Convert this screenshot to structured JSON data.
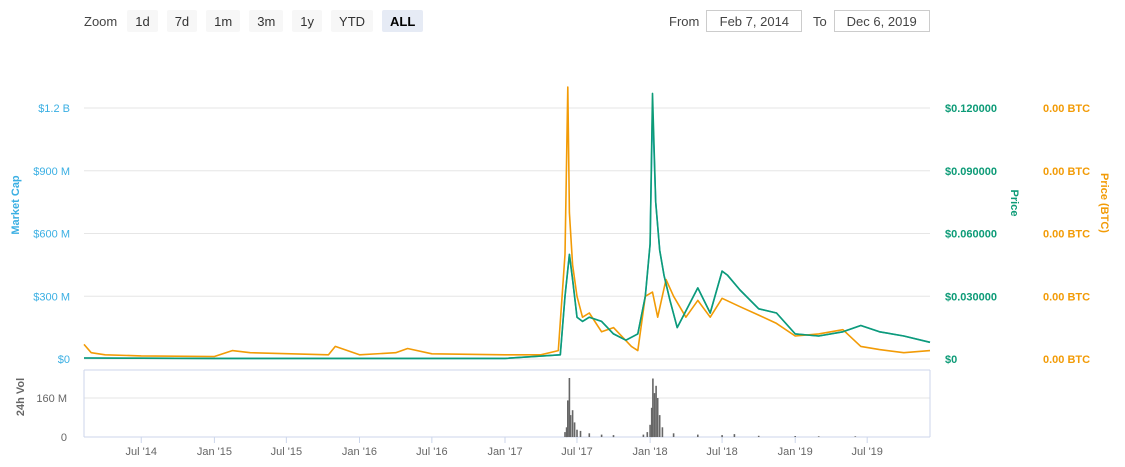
{
  "zoom": {
    "label": "Zoom",
    "buttons": [
      {
        "label": "1d",
        "active": false
      },
      {
        "label": "7d",
        "active": false
      },
      {
        "label": "1m",
        "active": false
      },
      {
        "label": "3m",
        "active": false
      },
      {
        "label": "1y",
        "active": false
      },
      {
        "label": "YTD",
        "active": false
      },
      {
        "label": "ALL",
        "active": true
      }
    ]
  },
  "range": {
    "from_label": "From",
    "from_value": "Feb 7, 2014",
    "to_label": "To",
    "to_value": "Dec 6, 2019"
  },
  "colors": {
    "market_cap": "#3aafe3",
    "price": "#0d9b77",
    "price_btc": "#f29b06",
    "volume": "#666666",
    "grid": "#e6e6e6"
  },
  "chart_data": {
    "type": "line",
    "x_range": [
      "2014-02-07",
      "2019-12-06"
    ],
    "x_ticks": [
      "Jul '14",
      "Jan '15",
      "Jul '15",
      "Jan '16",
      "Jul '16",
      "Jan '17",
      "Jul '17",
      "Jan '18",
      "Jul '18",
      "Jan '19",
      "Jul '19"
    ],
    "y_axes": {
      "market_cap": {
        "label": "Market Cap",
        "ticks": [
          "$0",
          "$300 M",
          "$600 M",
          "$900 M",
          "$1.2 B"
        ],
        "range": [
          0,
          1200000000
        ]
      },
      "price": {
        "label": "Price",
        "ticks": [
          "$0",
          "$0.030000",
          "$0.060000",
          "$0.090000",
          "$0.120000"
        ],
        "range": [
          0,
          0.12
        ]
      },
      "price_btc": {
        "label": "Price (BTC)",
        "ticks": [
          "0.00 BTC",
          "0.00 BTC",
          "0.00 BTC",
          "0.00 BTC",
          "0.00 BTC"
        ]
      },
      "volume": {
        "label": "24h Vol",
        "ticks": [
          "0",
          "160 M"
        ],
        "range": [
          0,
          160000000
        ]
      }
    },
    "series": [
      {
        "name": "Market Cap",
        "axis": "market_cap",
        "x": [
          "2014-02-07",
          "2014-07-01",
          "2015-01-01",
          "2016-01-01",
          "2017-01-01",
          "2017-05-20",
          "2017-06-01",
          "2017-06-12",
          "2017-06-20",
          "2017-07-01",
          "2017-07-15",
          "2017-08-01",
          "2017-09-01",
          "2017-10-01",
          "2017-11-01",
          "2017-12-01",
          "2017-12-20",
          "2018-01-01",
          "2018-01-07",
          "2018-01-15",
          "2018-01-25",
          "2018-02-05",
          "2018-02-20",
          "2018-03-10",
          "2018-04-01",
          "2018-05-01",
          "2018-06-01",
          "2018-07-01",
          "2018-07-15",
          "2018-08-15",
          "2018-10-01",
          "2018-11-15",
          "2019-01-01",
          "2019-03-01",
          "2019-05-01",
          "2019-06-15",
          "2019-08-01",
          "2019-10-01",
          "2019-12-06"
        ],
        "y": [
          5000000,
          4000000,
          3000000,
          3000000,
          3000000,
          20000000,
          300000000,
          500000000,
          380000000,
          200000000,
          180000000,
          200000000,
          180000000,
          120000000,
          90000000,
          120000000,
          300000000,
          550000000,
          1200000000,
          750000000,
          520000000,
          400000000,
          280000000,
          150000000,
          230000000,
          340000000,
          220000000,
          420000000,
          400000000,
          330000000,
          240000000,
          220000000,
          120000000,
          110000000,
          130000000,
          160000000,
          130000000,
          110000000,
          80000000
        ]
      },
      {
        "name": "Price",
        "axis": "price",
        "x": [
          "2014-02-07",
          "2014-07-01",
          "2015-01-01",
          "2016-01-01",
          "2017-01-01",
          "2017-05-20",
          "2017-06-01",
          "2017-06-12",
          "2017-06-20",
          "2017-07-01",
          "2017-07-15",
          "2017-08-01",
          "2017-09-01",
          "2017-10-01",
          "2017-11-01",
          "2017-12-01",
          "2017-12-20",
          "2018-01-01",
          "2018-01-07",
          "2018-01-15",
          "2018-01-25",
          "2018-02-05",
          "2018-02-20",
          "2018-03-10",
          "2018-04-01",
          "2018-05-01",
          "2018-06-01",
          "2018-07-01",
          "2018-07-15",
          "2018-08-15",
          "2018-10-01",
          "2018-11-15",
          "2019-01-01",
          "2019-03-01",
          "2019-05-01",
          "2019-06-15",
          "2019-08-01",
          "2019-10-01",
          "2019-12-06"
        ],
        "y": [
          0.0005,
          0.0004,
          0.0003,
          0.0003,
          0.0003,
          0.002,
          0.03,
          0.05,
          0.038,
          0.02,
          0.018,
          0.02,
          0.018,
          0.012,
          0.009,
          0.012,
          0.03,
          0.055,
          0.127,
          0.075,
          0.052,
          0.04,
          0.028,
          0.015,
          0.023,
          0.034,
          0.022,
          0.042,
          0.04,
          0.033,
          0.024,
          0.022,
          0.012,
          0.011,
          0.013,
          0.016,
          0.013,
          0.011,
          0.008
        ]
      },
      {
        "name": "Price (BTC)",
        "axis": "market_cap",
        "x": [
          "2014-02-07",
          "2014-02-25",
          "2014-04-01",
          "2014-07-01",
          "2015-01-01",
          "2015-02-15",
          "2015-04-01",
          "2015-10-15",
          "2015-11-01",
          "2016-01-01",
          "2016-04-01",
          "2016-05-01",
          "2016-07-01",
          "2017-01-01",
          "2017-04-01",
          "2017-05-15",
          "2017-06-01",
          "2017-06-08",
          "2017-06-12",
          "2017-06-20",
          "2017-07-01",
          "2017-07-15",
          "2017-08-01",
          "2017-09-01",
          "2017-10-01",
          "2017-11-15",
          "2017-12-01",
          "2017-12-20",
          "2018-01-07",
          "2018-01-20",
          "2018-02-10",
          "2018-03-01",
          "2018-04-01",
          "2018-05-01",
          "2018-06-01",
          "2018-07-01",
          "2018-08-15",
          "2018-10-01",
          "2018-11-15",
          "2019-01-01",
          "2019-03-01",
          "2019-05-01",
          "2019-06-15",
          "2019-08-01",
          "2019-10-01",
          "2019-12-06"
        ],
        "y": [
          70000000,
          30000000,
          20000000,
          15000000,
          12000000,
          40000000,
          30000000,
          20000000,
          60000000,
          20000000,
          30000000,
          50000000,
          25000000,
          20000000,
          20000000,
          40000000,
          500000000,
          1300000000,
          700000000,
          450000000,
          300000000,
          200000000,
          220000000,
          130000000,
          150000000,
          60000000,
          40000000,
          300000000,
          320000000,
          200000000,
          380000000,
          300000000,
          200000000,
          280000000,
          200000000,
          290000000,
          250000000,
          210000000,
          170000000,
          110000000,
          120000000,
          140000000,
          60000000,
          45000000,
          30000000,
          40000000
        ]
      }
    ],
    "volume": {
      "x": [
        "2017-06-01",
        "2017-06-05",
        "2017-06-08",
        "2017-06-12",
        "2017-06-15",
        "2017-06-20",
        "2017-06-25",
        "2017-07-01",
        "2017-07-10",
        "2017-08-01",
        "2017-09-01",
        "2017-10-01",
        "2017-12-15",
        "2017-12-25",
        "2018-01-01",
        "2018-01-05",
        "2018-01-08",
        "2018-01-12",
        "2018-01-16",
        "2018-01-20",
        "2018-01-25",
        "2018-02-01",
        "2018-03-01",
        "2018-05-01",
        "2018-07-01",
        "2018-08-01",
        "2018-10-01",
        "2019-01-01",
        "2019-03-01",
        "2019-06-01"
      ],
      "y": [
        20000000,
        40000000,
        150000000,
        250000000,
        90000000,
        110000000,
        60000000,
        30000000,
        25000000,
        15000000,
        10000000,
        8000000,
        10000000,
        20000000,
        50000000,
        120000000,
        240000000,
        180000000,
        210000000,
        160000000,
        90000000,
        40000000,
        15000000,
        10000000,
        8000000,
        12000000,
        5000000,
        4000000,
        3000000,
        3000000
      ]
    }
  }
}
